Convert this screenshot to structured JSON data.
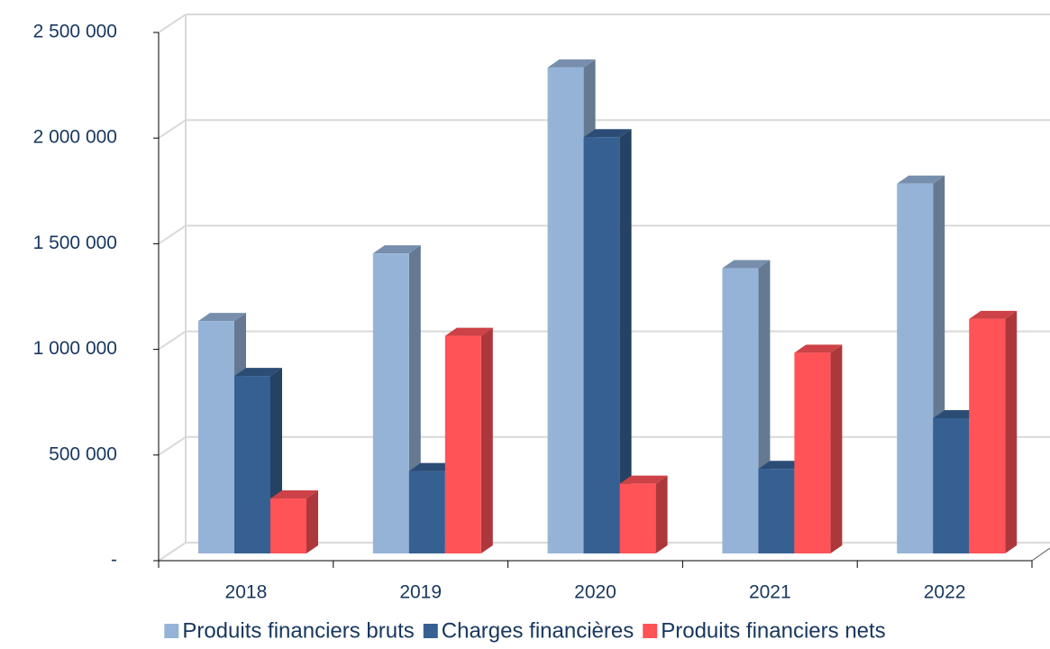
{
  "chart_data": {
    "type": "bar3d",
    "categories": [
      "2018",
      "2019",
      "2020",
      "2021",
      "2022"
    ],
    "series": [
      {
        "name": "Produits financiers bruts",
        "color": "#95b3d7",
        "values": [
          1100000,
          1420000,
          2300000,
          1350000,
          1750000
        ]
      },
      {
        "name": "Charges financières",
        "color": "#366092",
        "values": [
          840000,
          390000,
          1970000,
          400000,
          640000
        ]
      },
      {
        "name": "Produits financiers nets",
        "color": "#ff5358",
        "values": [
          260000,
          1030000,
          330000,
          950000,
          1110000
        ]
      }
    ],
    "ylim": [
      0,
      2500000
    ],
    "yticks": [
      {
        "value": 0,
        "label": "-"
      },
      {
        "value": 500000,
        "label": "500 000"
      },
      {
        "value": 1000000,
        "label": "1 000 000"
      },
      {
        "value": 1500000,
        "label": "1 500 000"
      },
      {
        "value": 2000000,
        "label": "2 000 000"
      },
      {
        "value": 2500000,
        "label": "2 500 000"
      }
    ],
    "grid": true,
    "legend": "bottom"
  }
}
